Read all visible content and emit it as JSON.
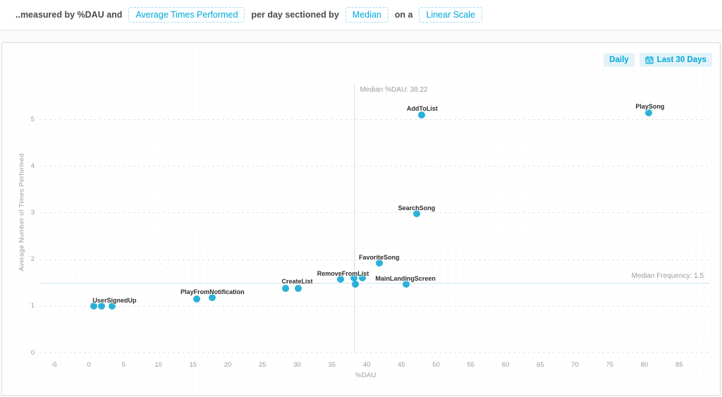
{
  "header": {
    "measured_prefix": "..measured by %DAU and",
    "metric_selector": "Average Times Performed",
    "sectioned_text": "per day sectioned by",
    "section_selector": "Median",
    "scale_text": "on a",
    "scale_selector": "Linear Scale"
  },
  "toolbar": {
    "interval_label": "Daily",
    "range_label": "Last 30 Days"
  },
  "colors": {
    "accent": "#00a9d8",
    "dot": "#29b1d8",
    "median_line": "#c9e6f2",
    "grid": "#e2e2e2",
    "tick_text": "#9b9b9b",
    "chip_border": "#aadcf0",
    "button_bg": "#e4f3fa"
  },
  "chart_data": {
    "type": "scatter",
    "title": "",
    "xlabel": "%DAU",
    "ylabel": "Average Number of Times Performed",
    "x_ticks": [
      -5,
      0,
      5,
      10,
      15,
      20,
      25,
      30,
      35,
      40,
      45,
      50,
      55,
      60,
      65,
      70,
      75,
      80,
      85
    ],
    "y_ticks": [
      0,
      1,
      2,
      3,
      4,
      5
    ],
    "xlim": [
      -7,
      89
    ],
    "ylim": [
      0,
      5.75
    ],
    "grid": "horizontal-dashed",
    "legend": "none",
    "median_x": {
      "value": 38.22,
      "label": "Median %DAU: 38.22"
    },
    "median_y": {
      "value": 1.5,
      "label": "Median Frequency: 1.5"
    },
    "series": [
      {
        "name": "UserSignedUp",
        "label_anchor": [
          3.7,
          1.12
        ],
        "points": [
          [
            0.7,
            1.0
          ],
          [
            1.8,
            1.0
          ],
          [
            3.3,
            0.99
          ]
        ]
      },
      {
        "name": "PlayFromNotification",
        "label_anchor": [
          17.8,
          1.3
        ],
        "points": [
          [
            15.5,
            1.15
          ],
          [
            17.8,
            1.18
          ]
        ]
      },
      {
        "name": "CreateList",
        "label_anchor": [
          30.0,
          1.53
        ],
        "points": [
          [
            28.3,
            1.38
          ],
          [
            30.2,
            1.38
          ]
        ]
      },
      {
        "name": "RemoveFromList",
        "label_anchor": [
          36.6,
          1.69
        ],
        "points": [
          [
            36.2,
            1.57
          ],
          [
            38.2,
            1.6
          ],
          [
            38.4,
            1.47
          ],
          [
            39.4,
            1.6
          ]
        ]
      },
      {
        "name": "FavoriteSong",
        "label_anchor": [
          41.8,
          2.04
        ],
        "points": [
          [
            41.8,
            1.92
          ]
        ]
      },
      {
        "name": "MainLandingScreen",
        "label_anchor": [
          45.6,
          1.59
        ],
        "points": [
          [
            45.7,
            1.47
          ]
        ]
      },
      {
        "name": "SearchSong",
        "label_anchor": [
          47.2,
          3.1
        ],
        "points": [
          [
            47.2,
            2.98
          ]
        ]
      },
      {
        "name": "AddToList",
        "label_anchor": [
          48.0,
          5.23
        ],
        "points": [
          [
            47.9,
            5.09
          ]
        ]
      },
      {
        "name": "PlaySong",
        "label_anchor": [
          80.8,
          5.27
        ],
        "points": [
          [
            80.6,
            5.14
          ]
        ]
      }
    ]
  }
}
